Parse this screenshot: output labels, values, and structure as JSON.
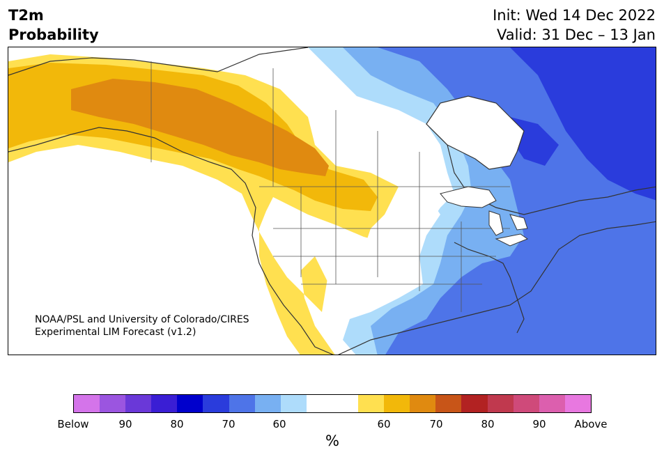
{
  "header": {
    "title_line1": "T2m",
    "title_line2": "Probability",
    "init": "Init: Wed 14 Dec 2022",
    "valid": "Valid: 31 Dec – 13 Jan"
  },
  "map": {
    "credit_line1": "NOAA/PSL and University of Colorado/CIRES",
    "credit_line2": "Experimental LIM Forecast (v1.2)",
    "region": "North America",
    "variable": "2 m temperature probability"
  },
  "colorbar": {
    "unit_label": "%",
    "tick_labels": [
      "Below",
      "90",
      "80",
      "70",
      "60",
      "60",
      "70",
      "80",
      "90",
      "Above"
    ],
    "colors": [
      "#d474ea",
      "#9b55e0",
      "#6a38d8",
      "#3a1ed4",
      "#0000cc",
      "#2a3cdc",
      "#4e74e8",
      "#78b0f2",
      "#aedcfb",
      "#ffffff",
      "#ffffff",
      "#ffffff",
      "#ffe050",
      "#f2b80a",
      "#e08a10",
      "#c85518",
      "#b22222",
      "#c0394e",
      "#cf4a7a",
      "#dc5fae",
      "#e878e0"
    ],
    "cold_color_key": {
      "60": "#aedcfb",
      "70": "#78b0f2",
      "80": "#2a3cdc"
    },
    "warm_color_key": {
      "60": "#ffe050",
      "70": "#e08a10",
      "80": "#b22222"
    }
  }
}
